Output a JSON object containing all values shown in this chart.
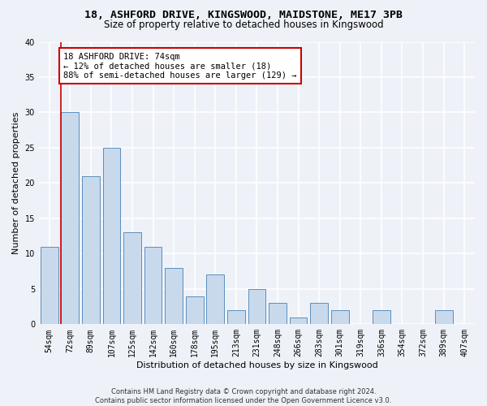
{
  "title_line1": "18, ASHFORD DRIVE, KINGSWOOD, MAIDSTONE, ME17 3PB",
  "title_line2": "Size of property relative to detached houses in Kingswood",
  "xlabel": "Distribution of detached houses by size in Kingswood",
  "ylabel": "Number of detached properties",
  "bar_color": "#c9d9ec",
  "bar_edge_color": "#5b8fbe",
  "categories": [
    "54sqm",
    "72sqm",
    "89sqm",
    "107sqm",
    "125sqm",
    "142sqm",
    "160sqm",
    "178sqm",
    "195sqm",
    "213sqm",
    "231sqm",
    "248sqm",
    "266sqm",
    "283sqm",
    "301sqm",
    "319sqm",
    "336sqm",
    "354sqm",
    "372sqm",
    "389sqm",
    "407sqm"
  ],
  "values": [
    11,
    30,
    21,
    25,
    13,
    11,
    8,
    4,
    7,
    2,
    5,
    3,
    1,
    3,
    2,
    0,
    2,
    0,
    0,
    2,
    0
  ],
  "ylim": [
    0,
    40
  ],
  "yticks": [
    0,
    5,
    10,
    15,
    20,
    25,
    30,
    35,
    40
  ],
  "property_bin_index": 1,
  "annotation_line1": "18 ASHFORD DRIVE: 74sqm",
  "annotation_line2": "← 12% of detached houses are smaller (18)",
  "annotation_line3": "88% of semi-detached houses are larger (129) →",
  "red_line_x": 0.575,
  "annotation_box_color": "#ffffff",
  "annotation_box_edge": "#cc0000",
  "footer_line1": "Contains HM Land Registry data © Crown copyright and database right 2024.",
  "footer_line2": "Contains public sector information licensed under the Open Government Licence v3.0.",
  "background_color": "#eef2f8",
  "grid_color": "#ffffff",
  "title_fontsize": 9.5,
  "subtitle_fontsize": 8.5,
  "tick_fontsize": 7,
  "ylabel_fontsize": 8,
  "xlabel_fontsize": 8,
  "annotation_fontsize": 7.5,
  "footer_fontsize": 6
}
